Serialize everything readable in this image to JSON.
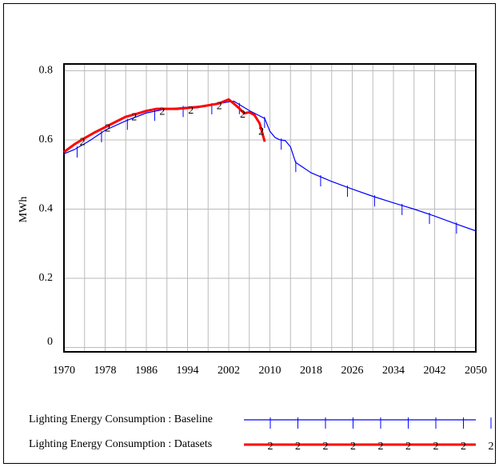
{
  "chart_data": {
    "type": "line",
    "ylabel": "MWh",
    "xlim": [
      1970,
      2050
    ],
    "ylim": [
      0,
      0.8
    ],
    "xticks": [
      1970,
      1978,
      1986,
      1994,
      2002,
      2010,
      2018,
      2026,
      2034,
      2042,
      2050
    ],
    "xgrid": [
      1970,
      1974,
      1978,
      1982,
      1986,
      1990,
      1994,
      1998,
      2002,
      2006,
      2010,
      2014,
      2018,
      2022,
      2026,
      2030,
      2034,
      2038,
      2042,
      2046,
      2050
    ],
    "yticks": [
      0,
      0.2,
      0.4,
      0.6,
      0.8
    ],
    "grid": true,
    "series": [
      {
        "name": "Lighting Energy Consumption : Baseline",
        "color": "#0000ff",
        "marker": "tick",
        "x": [
          1970,
          1972,
          1975,
          1978,
          1982,
          1986,
          1990,
          1994,
          1998,
          2002,
          2003,
          2006,
          2009,
          2010,
          2011,
          2012,
          2013,
          2014,
          2015,
          2018,
          2022,
          2026,
          2030,
          2034,
          2038,
          2042,
          2046,
          2050
        ],
        "values": [
          0.56,
          0.572,
          0.598,
          0.628,
          0.655,
          0.678,
          0.69,
          0.695,
          0.7,
          0.71,
          0.712,
          0.685,
          0.662,
          0.625,
          0.607,
          0.6,
          0.598,
          0.58,
          0.535,
          0.505,
          0.48,
          0.458,
          0.437,
          0.418,
          0.4,
          0.38,
          0.358,
          0.337
        ]
      },
      {
        "name": "Lighting Energy Consumption : Datasets",
        "color": "#ff0000",
        "marker": "2",
        "x": [
          1970,
          1972,
          1974,
          1976,
          1978,
          1980,
          1982,
          1984,
          1986,
          1988,
          1992,
          1996,
          1998,
          2000,
          2002,
          2003,
          2004,
          2005,
          2006,
          2007,
          2008,
          2009
        ],
        "values": [
          0.565,
          0.587,
          0.605,
          0.622,
          0.637,
          0.652,
          0.667,
          0.675,
          0.684,
          0.69,
          0.69,
          0.695,
          0.7,
          0.705,
          0.717,
          0.705,
          0.692,
          0.677,
          0.68,
          0.672,
          0.648,
          0.595
        ]
      }
    ]
  }
}
